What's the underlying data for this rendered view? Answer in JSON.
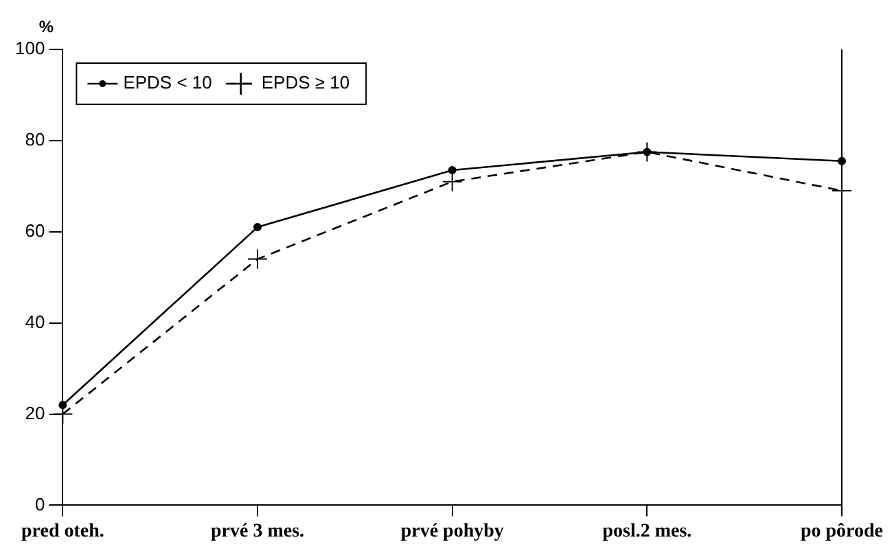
{
  "chart_data": {
    "type": "line",
    "ylabel": "%",
    "categories": [
      "pred oteh.",
      "prvé 3 mes.",
      "prvé pohyby",
      "posl.2 mes.",
      "po pôrode"
    ],
    "series": [
      {
        "name": "EPDS < 10",
        "color": "#000000",
        "marker": "circle",
        "line_style": "solid",
        "values": [
          22,
          61,
          73.5,
          77.5,
          75.5
        ]
      },
      {
        "name": "EPDS ≥ 10",
        "color": "#000000",
        "marker": "cross",
        "line_style": "dashed",
        "values": [
          20,
          54,
          71,
          77.5,
          69
        ]
      }
    ],
    "ylim": [
      0,
      100
    ],
    "yticks": [
      0,
      20,
      40,
      60,
      80,
      100
    ],
    "grid": false,
    "legend": "top left"
  }
}
